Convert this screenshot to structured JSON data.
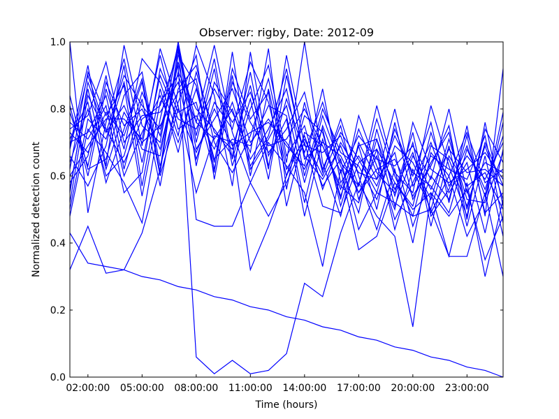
{
  "chart_data": {
    "type": "line",
    "title": "Observer: rigby, Date: 2012-09",
    "xlabel": "Time (hours)",
    "ylabel": "Normalized detection count",
    "xlim": [
      1,
      25
    ],
    "ylim": [
      0.0,
      1.0
    ],
    "x_ticks": [
      2,
      5,
      8,
      11,
      14,
      17,
      20,
      23
    ],
    "x_tick_labels": [
      "02:00:00",
      "05:00:00",
      "08:00:00",
      "11:00:00",
      "14:00:00",
      "17:00:00",
      "20:00:00",
      "23:00:00"
    ],
    "y_ticks": [
      0.0,
      0.2,
      0.4,
      0.6,
      0.8,
      1.0
    ],
    "y_tick_labels": [
      "0.0",
      "0.2",
      "0.4",
      "0.6",
      "0.8",
      "1.0"
    ],
    "grid": false,
    "line_color": "#0000ff",
    "x": [
      1,
      2,
      3,
      4,
      5,
      6,
      7,
      8,
      9,
      10,
      11,
      12,
      13,
      14,
      15,
      16,
      17,
      18,
      19,
      20,
      21,
      22,
      23,
      24,
      25
    ],
    "series": [
      {
        "values": [
          0.32,
          0.45,
          0.31,
          0.32,
          0.43,
          0.62,
          0.98,
          0.47,
          0.45,
          0.45,
          0.58,
          0.7,
          0.63,
          0.55,
          0.33,
          0.62,
          0.38,
          0.42,
          0.58,
          0.5,
          0.55,
          0.36,
          0.36,
          0.55,
          0.3
        ]
      },
      {
        "values": [
          0.55,
          0.88,
          0.73,
          0.9,
          0.81,
          0.74,
          0.93,
          0.06,
          0.01,
          0.05,
          0.01,
          0.02,
          0.07,
          0.28,
          0.24,
          0.43,
          0.58,
          0.48,
          0.42,
          0.15,
          0.55,
          0.48,
          0.56,
          0.35,
          0.48
        ]
      },
      {
        "values": [
          0.43,
          0.34,
          0.33,
          0.32,
          0.3,
          0.29,
          0.27,
          0.26,
          0.24,
          0.23,
          0.21,
          0.2,
          0.18,
          0.17,
          0.15,
          0.14,
          0.12,
          0.11,
          0.09,
          0.08,
          0.06,
          0.05,
          0.03,
          0.02,
          0.0
        ]
      },
      {
        "values": [
          1.0,
          0.49,
          0.76,
          0.95,
          0.69,
          0.98,
          0.81,
          0.55,
          0.72,
          0.7,
          0.32,
          0.45,
          0.6,
          0.72,
          0.57,
          0.65,
          0.44,
          0.55,
          0.52,
          0.48,
          0.5,
          0.36,
          0.58,
          0.3,
          0.53
        ]
      },
      {
        "values": [
          0.62,
          0.91,
          0.78,
          0.87,
          0.54,
          0.82,
          0.9,
          0.76,
          0.99,
          0.73,
          0.58,
          0.48,
          0.58,
          0.7,
          0.51,
          0.49,
          0.64,
          0.68,
          0.44,
          0.62,
          0.5,
          0.69,
          0.45,
          0.66,
          0.42
        ]
      },
      {
        "values": [
          0.71,
          0.82,
          0.58,
          0.74,
          0.89,
          0.61,
          0.96,
          0.87,
          0.64,
          0.92,
          0.77,
          0.85,
          0.51,
          0.73,
          0.69,
          0.57,
          0.52,
          0.71,
          0.56,
          0.67,
          0.49,
          0.6,
          0.73,
          0.58,
          0.62
        ]
      },
      {
        "values": [
          0.48,
          0.74,
          0.67,
          0.58,
          0.46,
          0.77,
          0.99,
          0.63,
          0.88,
          0.79,
          0.67,
          0.98,
          0.56,
          0.82,
          0.61,
          0.77,
          0.6,
          0.44,
          0.62,
          0.4,
          0.67,
          0.6,
          0.42,
          0.53,
          0.76
        ]
      },
      {
        "values": [
          0.81,
          0.6,
          0.86,
          0.68,
          0.95,
          0.88,
          0.72,
          0.99,
          0.84,
          0.57,
          0.97,
          0.66,
          0.77,
          0.48,
          0.71,
          0.54,
          0.69,
          0.5,
          0.76,
          0.53,
          0.64,
          0.73,
          0.5,
          0.7,
          0.57
        ]
      },
      {
        "values": [
          0.69,
          0.93,
          0.63,
          0.99,
          0.75,
          0.7,
          1.0,
          0.72,
          0.95,
          0.65,
          0.83,
          0.59,
          0.9,
          0.66,
          0.59,
          0.69,
          0.55,
          0.66,
          0.47,
          0.58,
          0.7,
          0.55,
          0.64,
          0.43,
          0.68
        ]
      },
      {
        "values": [
          0.58,
          0.66,
          0.9,
          0.62,
          0.83,
          0.57,
          0.86,
          0.93,
          0.7,
          0.61,
          0.72,
          0.89,
          0.64,
          1.0,
          0.64,
          0.48,
          0.7,
          0.59,
          0.67,
          0.45,
          0.6,
          0.53,
          0.72,
          0.49,
          0.55
        ]
      },
      {
        "values": [
          0.76,
          0.71,
          0.81,
          0.55,
          0.61,
          0.92,
          0.79,
          0.82,
          0.61,
          0.97,
          0.62,
          0.71,
          0.81,
          0.58,
          0.78,
          0.63,
          0.49,
          0.74,
          0.54,
          0.7,
          0.45,
          0.66,
          0.57,
          0.61,
          0.5
        ]
      },
      {
        "values": [
          0.52,
          0.84,
          0.73,
          0.81,
          0.68,
          0.66,
          0.94,
          0.68,
          0.77,
          0.86,
          0.7,
          0.77,
          0.69,
          0.63,
          0.86,
          0.58,
          0.66,
          0.57,
          0.72,
          0.61,
          0.57,
          0.49,
          0.68,
          0.56,
          0.72
        ]
      },
      {
        "values": [
          0.66,
          0.57,
          0.69,
          0.93,
          0.57,
          0.86,
          0.67,
          0.91,
          0.73,
          0.68,
          0.87,
          0.62,
          0.96,
          0.69,
          0.67,
          0.72,
          0.57,
          0.81,
          0.61,
          0.55,
          0.81,
          0.63,
          0.48,
          0.74,
          0.64
        ]
      },
      {
        "values": [
          0.74,
          0.78,
          0.94,
          0.7,
          0.78,
          0.79,
          0.88,
          0.65,
          0.82,
          0.74,
          0.94,
          0.82,
          0.6,
          0.78,
          0.73,
          0.53,
          0.78,
          0.63,
          0.5,
          0.76,
          0.62,
          0.58,
          0.62,
          0.67,
          0.59
        ]
      },
      {
        "values": [
          0.6,
          0.69,
          0.77,
          0.77,
          0.71,
          0.96,
          0.74,
          0.78,
          0.68,
          0.82,
          0.65,
          0.74,
          0.86,
          0.6,
          0.8,
          0.67,
          0.63,
          0.53,
          0.69,
          0.64,
          0.53,
          0.71,
          0.53,
          0.52,
          0.67
        ]
      },
      {
        "values": [
          0.84,
          0.62,
          0.65,
          0.84,
          0.91,
          0.63,
          0.82,
          0.96,
          0.59,
          0.88,
          0.76,
          0.67,
          0.74,
          0.85,
          0.62,
          0.75,
          0.53,
          0.68,
          0.58,
          0.51,
          0.73,
          0.57,
          0.66,
          0.59,
          0.7
        ]
      },
      {
        "values": [
          0.64,
          0.8,
          0.6,
          0.66,
          0.85,
          0.72,
          0.99,
          0.7,
          0.92,
          0.63,
          0.8,
          0.93,
          0.66,
          0.75,
          0.56,
          0.7,
          0.61,
          0.59,
          0.8,
          0.57,
          0.66,
          0.62,
          0.59,
          0.72,
          0.46
        ]
      },
      {
        "values": [
          0.7,
          0.73,
          0.84,
          0.6,
          0.73,
          0.84,
          0.7,
          0.86,
          0.65,
          0.71,
          0.69,
          0.81,
          0.78,
          0.52,
          0.75,
          0.61,
          0.72,
          0.65,
          0.63,
          0.69,
          0.59,
          0.8,
          0.55,
          0.64,
          0.61
        ]
      },
      {
        "values": [
          0.5,
          0.77,
          0.71,
          0.88,
          0.64,
          0.9,
          0.77,
          0.74,
          0.86,
          0.76,
          0.85,
          0.69,
          0.71,
          0.8,
          0.69,
          0.56,
          0.74,
          0.61,
          0.55,
          0.73,
          0.48,
          0.56,
          0.69,
          0.54,
          0.79
        ]
      },
      {
        "values": [
          0.79,
          0.63,
          0.88,
          0.75,
          0.8,
          0.68,
          0.91,
          0.8,
          0.74,
          0.66,
          0.91,
          0.63,
          0.83,
          0.67,
          0.82,
          0.64,
          0.57,
          0.77,
          0.6,
          0.48,
          0.69,
          0.65,
          0.51,
          0.69,
          0.53
        ]
      },
      {
        "values": [
          0.56,
          0.86,
          0.62,
          0.79,
          0.7,
          0.75,
          0.85,
          0.89,
          0.62,
          0.9,
          0.6,
          0.86,
          0.62,
          0.71,
          0.6,
          0.73,
          0.65,
          0.55,
          0.74,
          0.6,
          0.76,
          0.52,
          0.75,
          0.48,
          0.92
        ]
      },
      {
        "values": [
          0.73,
          0.67,
          0.79,
          0.72,
          0.88,
          0.6,
          0.8,
          0.67,
          0.8,
          0.69,
          0.73,
          0.76,
          0.7,
          0.62,
          0.74,
          0.51,
          0.69,
          0.71,
          0.51,
          0.66,
          0.56,
          0.68,
          0.61,
          0.62,
          0.57
        ]
      },
      {
        "values": [
          0.68,
          0.9,
          0.74,
          0.64,
          0.77,
          0.81,
          0.97,
          0.76,
          0.71,
          0.8,
          0.63,
          0.72,
          0.92,
          0.65,
          0.7,
          0.66,
          0.55,
          0.62,
          0.65,
          0.54,
          0.63,
          0.75,
          0.47,
          0.76,
          0.51
        ]
      }
    ]
  }
}
